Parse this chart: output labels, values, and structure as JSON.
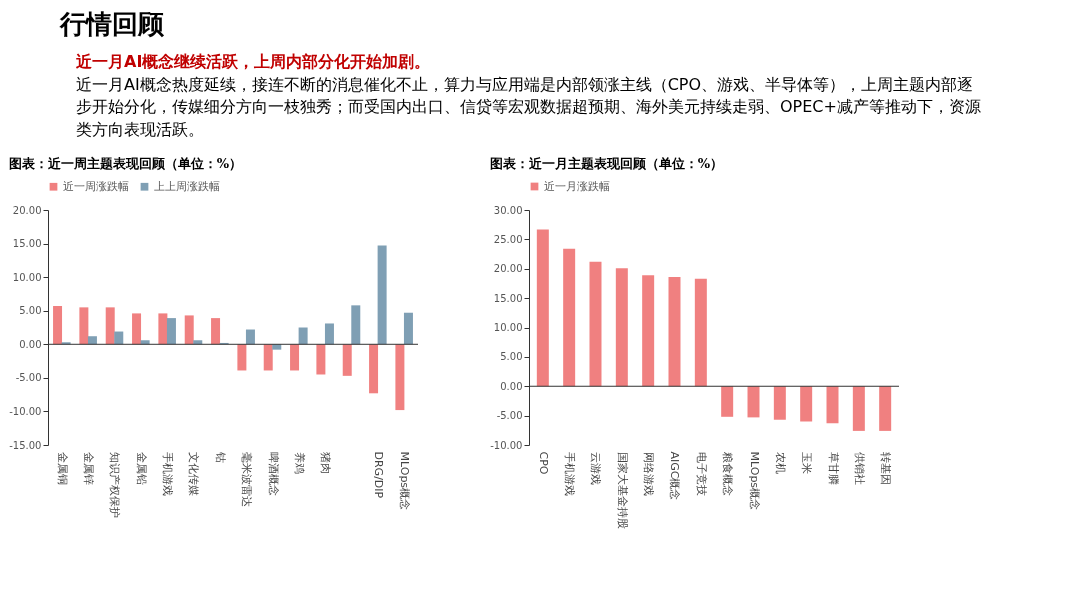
{
  "chart_data": [
    {
      "type": "bar",
      "title": "图表：近一周主题表现回顾（单位：%）",
      "annotations": [
        "行情回顾",
        "近一月AI概念继续活跃，上周内部分化开始加剧。",
        "近一月AI概念热度延续，接连不断的消息催化不止，算力与应用端是内部领涨主线（CPO、游戏、半导体等），上周主题内部逐步开始分化，传媒细分方向一枝独秀；而受国内出口、信贷等宏观数据超预期、海外美元持续走弱、OPEC+减产等推动下，资源类方向表现活跃。"
      ],
      "categories": [
        "金属铜",
        "金属锌",
        "知识产权保护",
        "金属铅",
        "手机游戏",
        "文化传媒",
        "钴",
        "毫米波雷达",
        "啤酒概念",
        "养鸡",
        "猪肉",
        null,
        "DRG/DIP",
        "MLOps概念"
      ],
      "series": [
        {
          "name": "近一周涨跌幅",
          "color": "#f08080",
          "values": [
            5.7,
            5.5,
            5.5,
            4.6,
            4.6,
            4.3,
            3.9,
            -3.9,
            -3.9,
            -3.9,
            -4.5,
            -4.7,
            -7.3,
            -9.8
          ]
        },
        {
          "name": "上上周涨跌幅",
          "color": "#7f9fb4",
          "values": [
            0.3,
            1.2,
            1.9,
            0.6,
            3.9,
            0.6,
            0.2,
            2.2,
            -0.8,
            2.5,
            3.1,
            5.8,
            14.7,
            4.7
          ]
        }
      ],
      "ylim": [
        -15,
        20
      ],
      "yticks": [
        {
          "value": -15,
          "label": "-15.00"
        },
        {
          "value": -10,
          "label": "-10.00"
        },
        {
          "value": -5,
          "label": "-5.00"
        },
        {
          "value": 0,
          "label": "0.00"
        },
        {
          "value": 5,
          "label": "5.00"
        },
        {
          "value": 10,
          "label": "10.00"
        },
        {
          "value": 15,
          "label": "15.00"
        },
        {
          "value": 20,
          "label": "20.00"
        }
      ],
      "legend": "top"
    },
    {
      "type": "bar",
      "title": "图表：近一月主题表现回顾（单位：%）",
      "categories": [
        "CPO",
        "手机游戏",
        "云游戏",
        "国家大基金持股",
        "网络游戏",
        "AIGC概念",
        "电子竞技",
        "粮食概念",
        "MLOps概念",
        "农机",
        "玉米",
        "草甘膦",
        "供销社",
        "转基因"
      ],
      "series": [
        {
          "name": "近一月涨跌幅",
          "color": "#f08080",
          "values": [
            26.7,
            23.4,
            21.2,
            20.1,
            18.9,
            18.6,
            18.3,
            -5.2,
            -5.3,
            -5.7,
            -6.0,
            -6.3,
            -7.6,
            -7.6
          ]
        }
      ],
      "ylim": [
        -10,
        30
      ],
      "yticks": [
        {
          "value": -10,
          "label": "-10.00"
        },
        {
          "value": -5,
          "label": "-5.00"
        },
        {
          "value": 0,
          "label": "0.00"
        },
        {
          "value": 5,
          "label": "5.00"
        },
        {
          "value": 10,
          "label": "10.00"
        },
        {
          "value": 15,
          "label": "15.00"
        },
        {
          "value": 20,
          "label": "20.00"
        },
        {
          "value": 25,
          "label": "25.00"
        },
        {
          "value": 30,
          "label": "30.00"
        }
      ],
      "legend": "top"
    }
  ]
}
